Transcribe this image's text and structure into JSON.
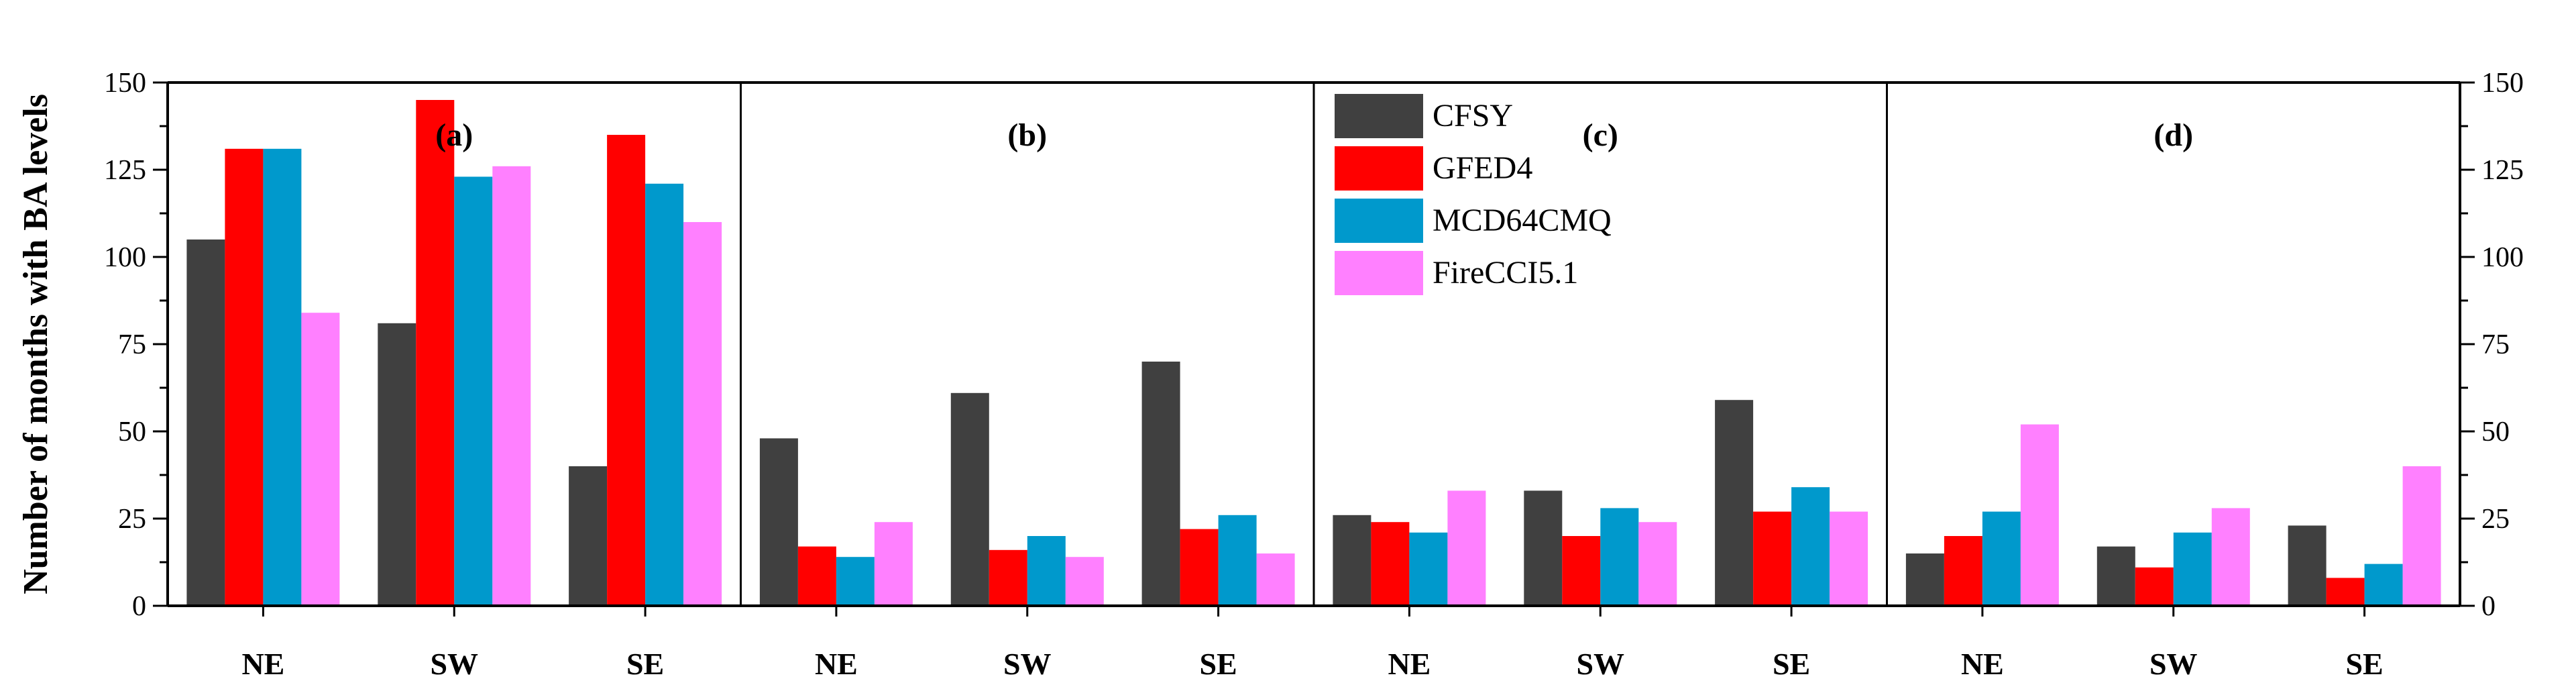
{
  "chart_data": {
    "type": "bar",
    "ylabel": "Number of months with BA levels",
    "ylim": [
      0,
      150
    ],
    "yticks": [
      0,
      25,
      50,
      75,
      100,
      125,
      150
    ],
    "grid": false,
    "legend_position": "top-center",
    "series": [
      {
        "name": "CFSY",
        "color": "#404040"
      },
      {
        "name": "GFED4",
        "color": "#ff0000"
      },
      {
        "name": "MCD64CMQ",
        "color": "#0099cc"
      },
      {
        "name": "FireCCI5.1",
        "color": "#ff80ff"
      }
    ],
    "panels": [
      {
        "label": "(a)",
        "categories": [
          "NE",
          "SW",
          "SE"
        ],
        "values": [
          [
            105,
            131,
            131,
            84
          ],
          [
            81,
            145,
            123,
            126
          ],
          [
            40,
            135,
            121,
            110
          ]
        ]
      },
      {
        "label": "(b)",
        "categories": [
          "NE",
          "SW",
          "SE"
        ],
        "values": [
          [
            48,
            17,
            14,
            24
          ],
          [
            61,
            16,
            20,
            14
          ],
          [
            70,
            22,
            26,
            15
          ]
        ]
      },
      {
        "label": "(c)",
        "categories": [
          "NE",
          "SW",
          "SE"
        ],
        "values": [
          [
            26,
            24,
            21,
            33
          ],
          [
            33,
            20,
            28,
            24
          ],
          [
            59,
            27,
            34,
            27
          ]
        ]
      },
      {
        "label": "(d)",
        "categories": [
          "NE",
          "SW",
          "SE"
        ],
        "values": [
          [
            15,
            20,
            27,
            52
          ],
          [
            17,
            11,
            21,
            28
          ],
          [
            23,
            8,
            12,
            40
          ]
        ]
      }
    ]
  }
}
